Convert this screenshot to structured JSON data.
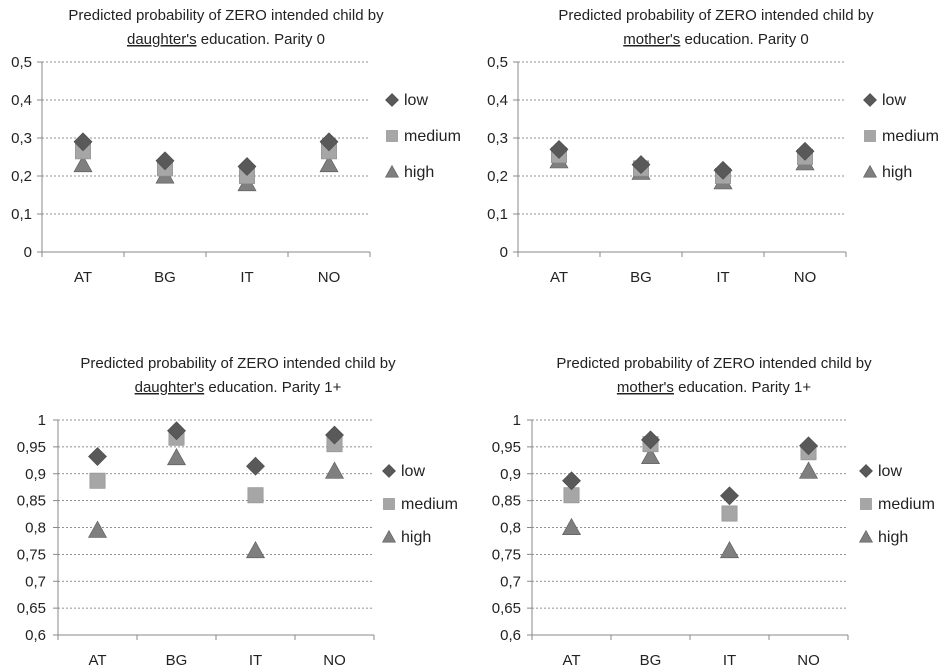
{
  "chart_data": [
    {
      "type": "scatter",
      "title_parts": [
        "Predicted probability of ZERO intended child by",
        "daughter's",
        " education. Parity 0"
      ],
      "categories": [
        "AT",
        "BG",
        "IT",
        "NO"
      ],
      "ylim": [
        0,
        0.5
      ],
      "yticks": [
        "0",
        "0,1",
        "0,2",
        "0,3",
        "0,4",
        "0,5"
      ],
      "ytick_values": [
        0,
        0.1,
        0.2,
        0.3,
        0.4,
        0.5
      ],
      "grid": true,
      "legend_position": "right",
      "series": [
        {
          "name": "low",
          "marker": "diamond",
          "color": "#595959",
          "values": [
            0.29,
            0.24,
            0.225,
            0.29
          ]
        },
        {
          "name": "medium",
          "marker": "square",
          "color": "#a6a6a6",
          "values": [
            0.265,
            0.22,
            0.2,
            0.265
          ]
        },
        {
          "name": "high",
          "marker": "triangle",
          "color": "#7f7f7f",
          "values": [
            0.23,
            0.2,
            0.18,
            0.23
          ]
        }
      ]
    },
    {
      "type": "scatter",
      "title_parts": [
        "Predicted probability of ZERO intended child by",
        "mother's",
        " education. Parity 0"
      ],
      "categories": [
        "AT",
        "BG",
        "IT",
        "NO"
      ],
      "ylim": [
        0,
        0.5
      ],
      "yticks": [
        "0",
        "0,1",
        "0,2",
        "0,3",
        "0,4",
        "0,5"
      ],
      "ytick_values": [
        0,
        0.1,
        0.2,
        0.3,
        0.4,
        0.5
      ],
      "grid": true,
      "legend_position": "right",
      "series": [
        {
          "name": "low",
          "marker": "diamond",
          "color": "#595959",
          "values": [
            0.27,
            0.23,
            0.215,
            0.265
          ]
        },
        {
          "name": "medium",
          "marker": "square",
          "color": "#a6a6a6",
          "values": [
            0.255,
            0.22,
            0.2,
            0.25
          ]
        },
        {
          "name": "high",
          "marker": "triangle",
          "color": "#7f7f7f",
          "values": [
            0.24,
            0.21,
            0.185,
            0.235
          ]
        }
      ]
    },
    {
      "type": "scatter",
      "title_parts": [
        "Predicted probability of ZERO intended child by",
        "daughter's",
        " education. Parity 1+"
      ],
      "categories": [
        "AT",
        "BG",
        "IT",
        "NO"
      ],
      "ylim": [
        0.6,
        1
      ],
      "yticks": [
        "0,6",
        "0,65",
        "0,7",
        "0,75",
        "0,8",
        "0,85",
        "0,9",
        "0,95",
        "1"
      ],
      "ytick_values": [
        0.6,
        0.65,
        0.7,
        0.75,
        0.8,
        0.85,
        0.9,
        0.95,
        1
      ],
      "grid": true,
      "legend_position": "right",
      "series": [
        {
          "name": "low",
          "marker": "diamond",
          "color": "#595959",
          "values": [
            0.932,
            0.98,
            0.914,
            0.972
          ]
        },
        {
          "name": "medium",
          "marker": "square",
          "color": "#a6a6a6",
          "values": [
            0.887,
            0.967,
            0.86,
            0.955
          ]
        },
        {
          "name": "high",
          "marker": "triangle",
          "color": "#7f7f7f",
          "values": [
            0.795,
            0.93,
            0.757,
            0.905
          ]
        }
      ]
    },
    {
      "type": "scatter",
      "title_parts": [
        "Predicted probability of ZERO intended child by",
        "mother's",
        " education. Parity 1+"
      ],
      "categories": [
        "AT",
        "BG",
        "IT",
        "NO"
      ],
      "ylim": [
        0.6,
        1
      ],
      "yticks": [
        "0,6",
        "0,65",
        "0,7",
        "0,75",
        "0,8",
        "0,85",
        "0,9",
        "0,95",
        "1"
      ],
      "ytick_values": [
        0.6,
        0.65,
        0.7,
        0.75,
        0.8,
        0.85,
        0.9,
        0.95,
        1
      ],
      "grid": true,
      "legend_position": "right",
      "series": [
        {
          "name": "low",
          "marker": "diamond",
          "color": "#595959",
          "values": [
            0.887,
            0.963,
            0.859,
            0.952
          ]
        },
        {
          "name": "medium",
          "marker": "square",
          "color": "#a6a6a6",
          "values": [
            0.86,
            0.955,
            0.826,
            0.94
          ]
        },
        {
          "name": "high",
          "marker": "triangle",
          "color": "#7f7f7f",
          "values": [
            0.8,
            0.932,
            0.757,
            0.905
          ]
        }
      ]
    }
  ]
}
